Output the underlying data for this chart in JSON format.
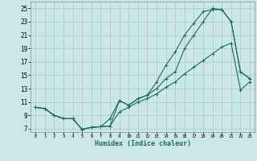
{
  "xlabel": "Humidex (Indice chaleur)",
  "bg_color": "#cce8e6",
  "grid_color": "#aacfcc",
  "line_color": "#1a6b5a",
  "xlim": [
    -0.5,
    23.5
  ],
  "ylim": [
    6.5,
    26
  ],
  "xticks": [
    0,
    1,
    2,
    3,
    4,
    5,
    6,
    7,
    8,
    9,
    10,
    11,
    12,
    13,
    14,
    15,
    16,
    17,
    18,
    19,
    20,
    21,
    22,
    23
  ],
  "yticks": [
    7,
    9,
    11,
    13,
    15,
    17,
    19,
    21,
    23,
    25
  ],
  "line1_x": [
    0,
    1,
    2,
    3,
    4,
    5,
    6,
    7,
    8,
    9,
    10,
    11,
    12,
    13,
    14,
    15,
    16,
    17,
    18,
    19,
    20,
    21,
    22,
    23
  ],
  "line1_y": [
    10.2,
    10.0,
    9.0,
    8.5,
    8.5,
    6.9,
    7.2,
    7.3,
    8.5,
    11.2,
    10.5,
    11.5,
    12.0,
    14.0,
    16.5,
    18.5,
    21.0,
    22.8,
    24.5,
    24.8,
    24.8,
    23.0,
    15.5,
    14.5
  ],
  "line2_x": [
    0,
    1,
    2,
    3,
    4,
    5,
    6,
    7,
    8,
    9,
    10,
    11,
    12,
    13,
    14,
    15,
    16,
    17,
    18,
    19,
    20,
    21,
    22,
    23
  ],
  "line2_y": [
    10.2,
    10.0,
    9.0,
    8.5,
    8.5,
    6.9,
    7.2,
    7.3,
    7.4,
    11.2,
    10.5,
    11.5,
    12.0,
    13.0,
    14.5,
    15.5,
    19.0,
    21.0,
    23.0,
    25.0,
    24.8,
    23.0,
    15.5,
    14.5
  ],
  "line3_x": [
    0,
    1,
    2,
    3,
    4,
    5,
    6,
    7,
    8,
    9,
    10,
    11,
    12,
    13,
    14,
    15,
    16,
    17,
    18,
    19,
    20,
    21,
    22,
    23
  ],
  "line3_y": [
    10.2,
    10.0,
    9.0,
    8.5,
    8.5,
    6.9,
    7.2,
    7.3,
    7.4,
    9.5,
    10.2,
    11.0,
    11.5,
    12.2,
    13.2,
    14.0,
    15.2,
    16.2,
    17.2,
    18.2,
    19.2,
    19.8,
    12.8,
    14.0
  ]
}
